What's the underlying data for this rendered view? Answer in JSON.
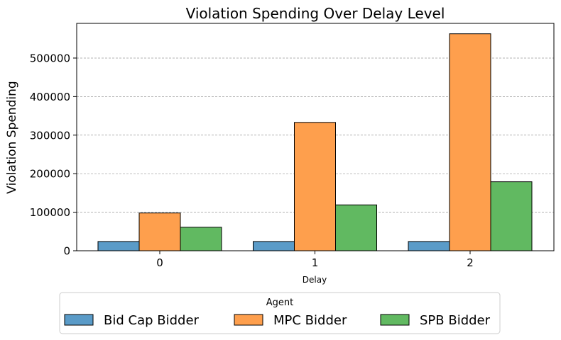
{
  "chart_data": {
    "type": "bar",
    "title": "Violation Spending Over Delay Level",
    "xlabel": "Delay",
    "ylabel": "Violation Spending",
    "categories": [
      "0",
      "1",
      "2"
    ],
    "series": [
      {
        "name": "Bid Cap Bidder",
        "color": "#5a9bc8",
        "values": [
          24000,
          24000,
          24000
        ]
      },
      {
        "name": "MPC Bidder",
        "color": "#fe9f4d",
        "values": [
          98000,
          333000,
          563000
        ]
      },
      {
        "name": "SPB Bidder",
        "color": "#61b961",
        "values": [
          61000,
          119000,
          179000
        ]
      }
    ],
    "ylim": [
      0,
      590000
    ],
    "yticks": [
      0,
      100000,
      200000,
      300000,
      400000,
      500000
    ],
    "ytick_labels": [
      "0",
      "100000",
      "200000",
      "300000",
      "400000",
      "500000"
    ],
    "grid": "y-dashed",
    "legend": {
      "title": "Agent",
      "placement": "bottom-center-outside",
      "entries": [
        "Bid Cap Bidder",
        "MPC Bidder",
        "SPB Bidder"
      ]
    }
  }
}
